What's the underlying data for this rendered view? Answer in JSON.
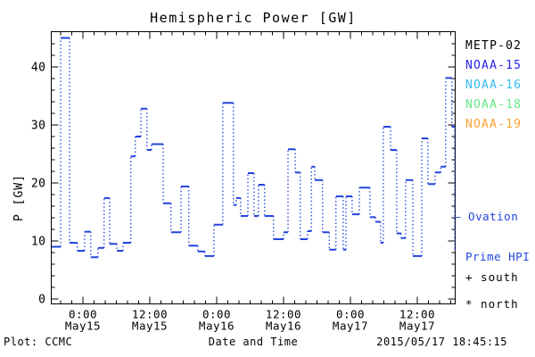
{
  "title": "Hemispheric Power [GW]",
  "colors": {
    "background": "#ffffff",
    "frame": "#000000",
    "curve": "#2244dd"
  },
  "footer": {
    "left": "Plot: CCMC",
    "right": "2015/05/17 18:45:15"
  },
  "legend": {
    "satellites": [
      {
        "label": "METP-02",
        "color": "#000000"
      },
      {
        "label": "NOAA-15",
        "color": "#2222ee"
      },
      {
        "label": "NOAA-16",
        "color": "#33bbee"
      },
      {
        "label": "NOAA-18",
        "color": "#66e688"
      },
      {
        "label": "NOAA-19",
        "color": "#ffa033"
      }
    ],
    "model": {
      "line1": "— Ovation",
      "line2": "Prime HPI",
      "color": "#2244dd"
    },
    "markers": [
      {
        "text": "+ south"
      },
      {
        "text": "* north"
      }
    ]
  },
  "axes": {
    "x": {
      "label": "Date and Time",
      "ticks": [
        {
          "hours": 0,
          "time": "0:00",
          "date": "May15"
        },
        {
          "hours": 12,
          "time": "12:00",
          "date": "May15"
        },
        {
          "hours": 24,
          "time": "0:00",
          "date": "May16"
        },
        {
          "hours": 36,
          "time": "12:00",
          "date": "May16"
        },
        {
          "hours": 48,
          "time": "0:00",
          "date": "May17"
        },
        {
          "hours": 60,
          "time": "12:00",
          "date": "May17"
        }
      ],
      "minor_step_hours": 2,
      "range_hours": [
        -5.7,
        66.8
      ]
    },
    "y": {
      "label": "P [GW]",
      "ticks": [
        0,
        10,
        20,
        30,
        40
      ],
      "minor_step": 2,
      "range": [
        0,
        46
      ]
    }
  },
  "chart_data": {
    "type": "line",
    "subtype": "step",
    "series_name": "Ovation Prime HPI",
    "units": "GW",
    "x_unit": "hours from 2015-05-15 00:00",
    "title": "Hemispheric Power [GW]",
    "xlabel": "Date and Time",
    "ylabel": "P [GW]",
    "ylim": [
      0,
      46
    ],
    "grid": false,
    "legend_position": "right",
    "points": [
      [
        -5.6,
        9.0
      ],
      [
        -4.0,
        45.0
      ],
      [
        -2.4,
        9.7
      ],
      [
        -1.0,
        8.3
      ],
      [
        0.3,
        11.6
      ],
      [
        1.4,
        7.2
      ],
      [
        2.7,
        8.8
      ],
      [
        3.8,
        17.4
      ],
      [
        4.8,
        9.5
      ],
      [
        6.1,
        8.3
      ],
      [
        7.2,
        9.7
      ],
      [
        8.6,
        24.6
      ],
      [
        9.4,
        28.0
      ],
      [
        10.4,
        32.8
      ],
      [
        11.5,
        25.7
      ],
      [
        12.3,
        26.7
      ],
      [
        14.4,
        16.5
      ],
      [
        15.8,
        11.5
      ],
      [
        17.6,
        19.4
      ],
      [
        19.0,
        9.2
      ],
      [
        20.6,
        8.2
      ],
      [
        21.9,
        7.4
      ],
      [
        23.5,
        12.8
      ],
      [
        25.1,
        33.8
      ],
      [
        27.0,
        16.2
      ],
      [
        27.5,
        17.4
      ],
      [
        28.3,
        14.3
      ],
      [
        29.6,
        21.7
      ],
      [
        30.7,
        14.3
      ],
      [
        31.5,
        19.7
      ],
      [
        32.6,
        14.3
      ],
      [
        34.2,
        10.3
      ],
      [
        36.0,
        11.5
      ],
      [
        36.8,
        25.8
      ],
      [
        38.1,
        21.8
      ],
      [
        39.0,
        10.3
      ],
      [
        40.3,
        11.7
      ],
      [
        41.0,
        22.8
      ],
      [
        41.6,
        20.5
      ],
      [
        43.0,
        11.5
      ],
      [
        44.2,
        8.5
      ],
      [
        45.4,
        17.7
      ],
      [
        46.7,
        8.5
      ],
      [
        47.2,
        17.7
      ],
      [
        48.3,
        14.6
      ],
      [
        49.6,
        19.2
      ],
      [
        51.5,
        14.1
      ],
      [
        52.5,
        13.3
      ],
      [
        53.4,
        9.7
      ],
      [
        53.9,
        29.7
      ],
      [
        55.2,
        25.7
      ],
      [
        56.3,
        11.3
      ],
      [
        57.1,
        10.5
      ],
      [
        57.9,
        20.5
      ],
      [
        59.2,
        7.4
      ],
      [
        60.8,
        27.7
      ],
      [
        61.9,
        19.8
      ],
      [
        63.2,
        21.8
      ],
      [
        64.2,
        22.8
      ],
      [
        65.1,
        38.1
      ],
      [
        66.2,
        29.7
      ],
      [
        66.7,
        8.5
      ]
    ]
  }
}
